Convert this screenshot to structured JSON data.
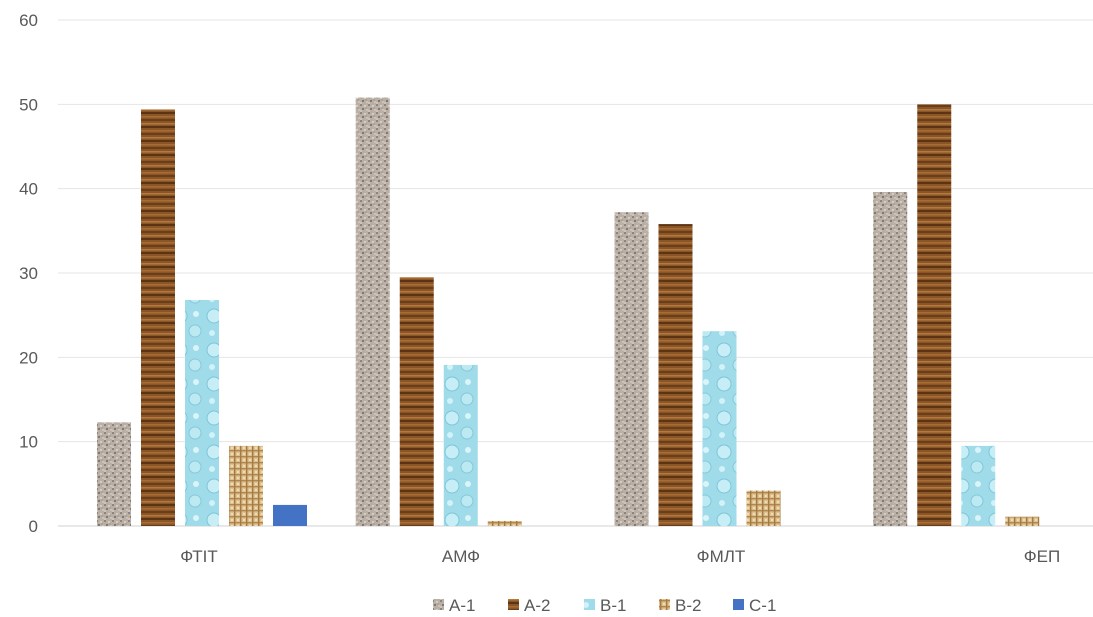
{
  "chart_data": {
    "type": "bar",
    "categories": [
      "ФТІТ",
      "АМФ",
      "ФМЛТ",
      "ФЕП"
    ],
    "series": [
      {
        "name": "A-1",
        "values": [
          12.3,
          50.8,
          37.2,
          39.6
        ]
      },
      {
        "name": "A-2",
        "values": [
          49.4,
          29.5,
          35.8,
          50.0
        ]
      },
      {
        "name": "B-1",
        "values": [
          26.8,
          19.1,
          23.1,
          9.5
        ]
      },
      {
        "name": "B-2",
        "values": [
          9.5,
          0.6,
          4.2,
          1.1
        ]
      },
      {
        "name": "C-1",
        "values": [
          2.5,
          0,
          0,
          0
        ]
      }
    ],
    "ylim": [
      0,
      60
    ],
    "yticks": [
      "0",
      "10",
      "20",
      "30",
      "40",
      "50",
      "60"
    ],
    "grid": true,
    "legend": "bottom",
    "colors": {
      "A-1": "#b0a69c",
      "A-2": "#7b4a22",
      "B-1": "#a9e2ee",
      "B-2": "#cfae78",
      "C-1": "#4472c4"
    }
  }
}
